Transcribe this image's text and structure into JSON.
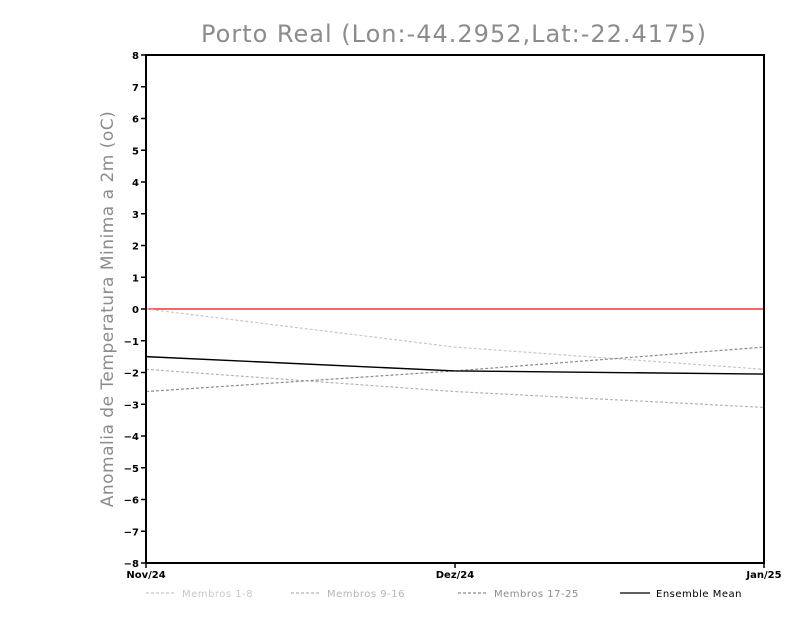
{
  "chart_data": {
    "type": "line",
    "title": "Porto Real (Lon:-44.2952,Lat:-22.4175)",
    "ylabel": "Anomalia de Temperatura Minima a 2m (oC)",
    "xlabel": "",
    "categories": [
      "Nov/24",
      "Dez/24",
      "Jan/25"
    ],
    "ylim": [
      -8,
      8
    ],
    "yticks": [
      "8",
      "7",
      "6",
      "5",
      "4",
      "3",
      "2",
      "1",
      "0",
      "-1",
      "-2",
      "-3",
      "-4",
      "-5",
      "-6",
      "-7",
      "-8"
    ],
    "zero_line_color": "#ff3030",
    "series": [
      {
        "name": "Membros 1-8",
        "color": "#c8c8c8",
        "dash": true,
        "values": [
          0.0,
          -1.2,
          -1.9
        ]
      },
      {
        "name": "Membros 9-16",
        "color": "#b4b4b4",
        "dash": true,
        "values": [
          -1.9,
          -2.6,
          -3.1
        ]
      },
      {
        "name": "Membros 17-25",
        "color": "#8c8c8c",
        "dash": true,
        "values": [
          -2.6,
          -1.95,
          -1.2
        ]
      },
      {
        "name": "Ensemble Mean",
        "color": "#000000",
        "dash": false,
        "values": [
          -1.5,
          -1.95,
          -2.05
        ]
      }
    ],
    "legend_position": "bottom"
  }
}
